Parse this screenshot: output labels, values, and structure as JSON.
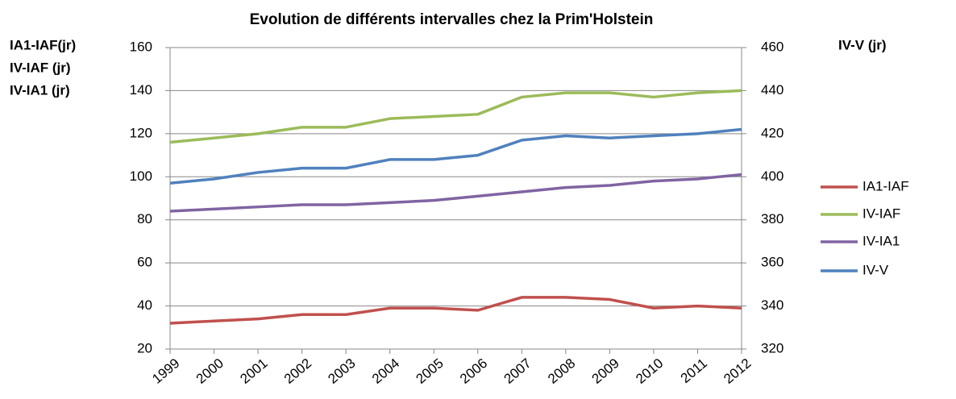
{
  "chart_data": {
    "type": "line",
    "title": "Evolution de différents intervalles chez la Prim'Holstein",
    "ylabel": [
      "IA1-IAF(jr)",
      "IV-IAF (jr)",
      "IV-IA1 (jr)"
    ],
    "y2label": "IV-V (jr)",
    "categories": [
      "1999",
      "2000",
      "2001",
      "2002",
      "2003",
      "2004",
      "2005",
      "2006",
      "2007",
      "2008",
      "2009",
      "2010",
      "2011",
      "2012"
    ],
    "ylim": [
      20,
      160
    ],
    "yticks": [
      20,
      40,
      60,
      80,
      100,
      120,
      140,
      160
    ],
    "y2lim": [
      320,
      460
    ],
    "y2ticks": [
      320,
      340,
      360,
      380,
      400,
      420,
      440,
      460
    ],
    "grid": true,
    "legend": "right",
    "series": [
      {
        "name": "IA1-IAF",
        "color": "#c0504d",
        "values": [
          32,
          33,
          34,
          36,
          36,
          39,
          39,
          38,
          44,
          44,
          43,
          39,
          40,
          39
        ]
      },
      {
        "name": "IV-IAF",
        "color": "#9bbb59",
        "values": [
          116,
          118,
          120,
          123,
          123,
          127,
          128,
          129,
          137,
          139,
          139,
          137,
          139,
          140
        ]
      },
      {
        "name": "IV-IA1",
        "color": "#8064a2",
        "values": [
          84,
          85,
          86,
          87,
          87,
          88,
          89,
          91,
          93,
          95,
          96,
          98,
          99,
          101
        ]
      },
      {
        "name": "IV-V",
        "color": "#4f81bd",
        "axis": "y2",
        "values": [
          397,
          399,
          402,
          404,
          404,
          408,
          408,
          410,
          417,
          419,
          418,
          419,
          420,
          422
        ]
      }
    ]
  }
}
